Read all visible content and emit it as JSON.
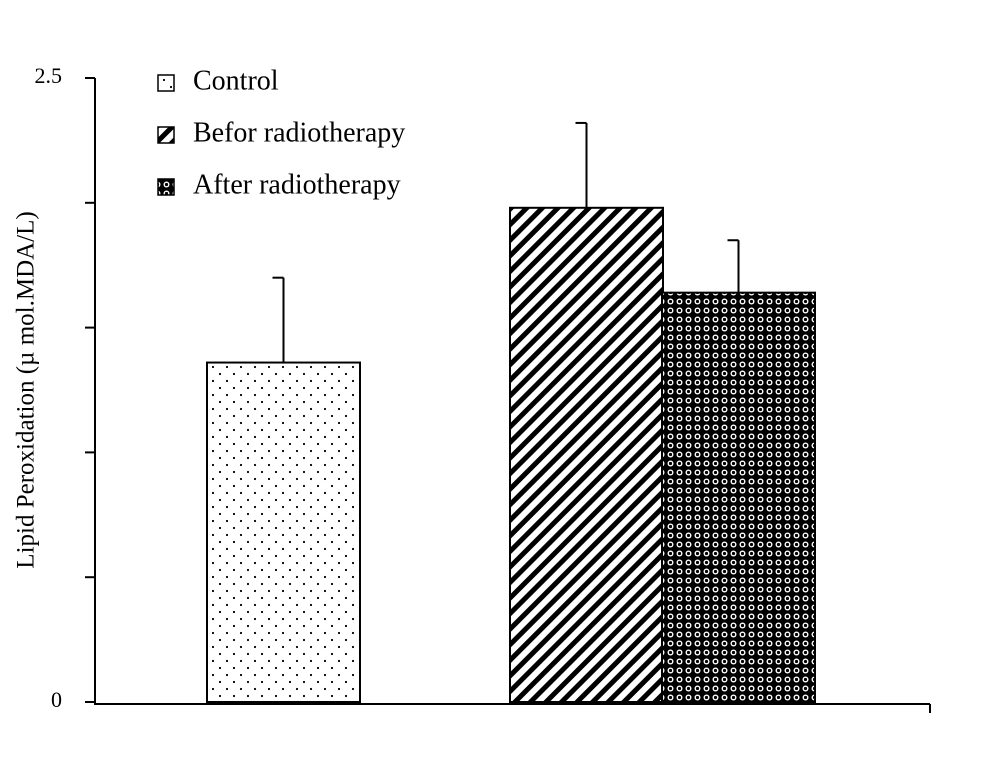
{
  "chart_data": {
    "type": "bar",
    "y_label": "Lipid Peroxidation (µ mol.MDA/L)",
    "ylim": [
      0,
      2.5
    ],
    "yticks": [
      0,
      2.5
    ],
    "minor_yticks": [
      0.5,
      1,
      1.5,
      2
    ],
    "legend": "upper left",
    "series": [
      {
        "name": "Control",
        "color": "#000000",
        "pattern": "dots",
        "values": [
          1.36
        ],
        "errors": [
          0.34
        ]
      },
      {
        "name": "Befor radiotherapy",
        "color": "#000000",
        "pattern": "stripes",
        "values": [
          1.98
        ],
        "errors": [
          0.34
        ]
      },
      {
        "name": "After radiotherapy",
        "color": "#000000",
        "pattern": "checks",
        "values": [
          1.64
        ],
        "errors": [
          0.21
        ]
      }
    ]
  }
}
